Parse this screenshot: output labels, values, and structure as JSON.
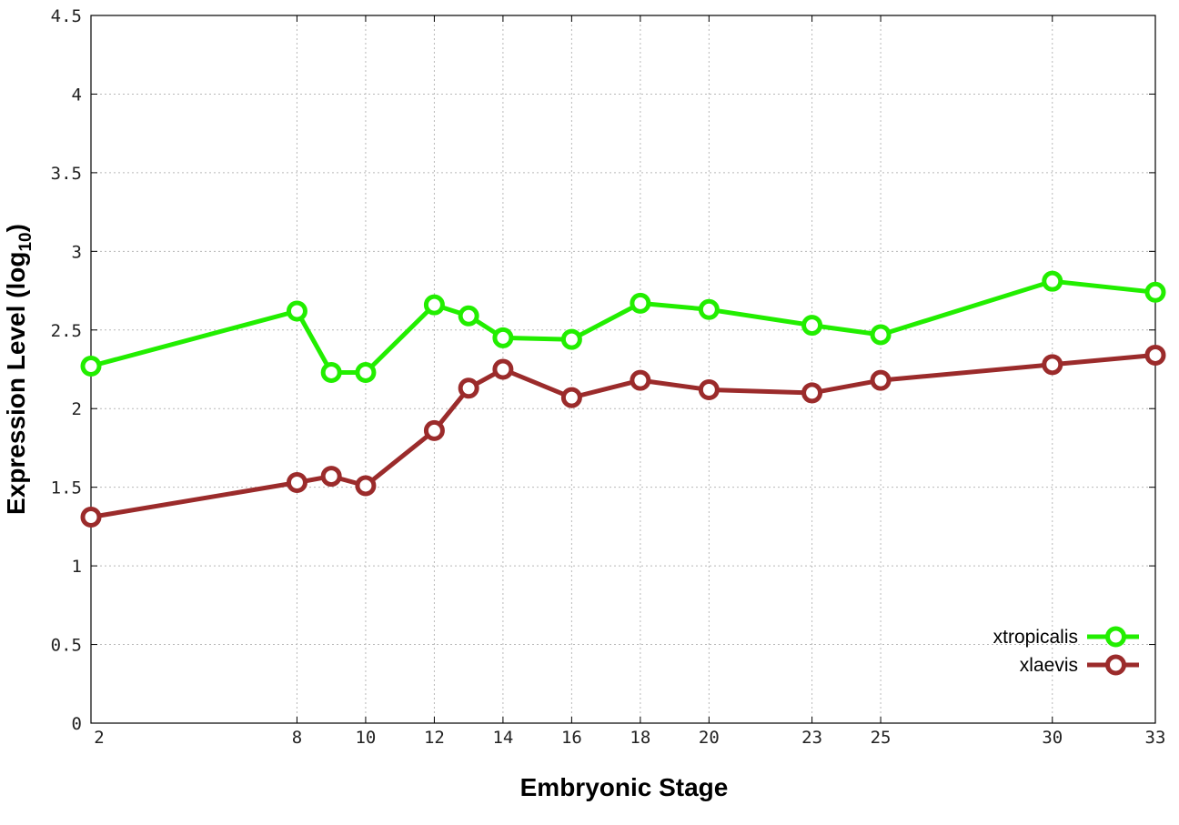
{
  "chart_data": {
    "type": "line",
    "xlabel": "Embryonic Stage",
    "ylabel": "Expression Level (log",
    "ylabel_sub": "10",
    "ylabel_suffix": ")",
    "xlim": [
      2,
      33
    ],
    "ylim": [
      0,
      4.5
    ],
    "x_ticks": [
      2,
      8,
      10,
      12,
      14,
      16,
      18,
      20,
      23,
      25,
      30,
      33
    ],
    "y_ticks": [
      "0",
      "0.5",
      "1",
      "1.5",
      "2",
      "2.5",
      "3",
      "3.5",
      "4",
      "4.5"
    ],
    "grid": true,
    "legend_position": "bottom-right",
    "series": [
      {
        "name": "xtropicalis",
        "color": "#22ee00",
        "x": [
          2,
          8,
          9,
          10,
          12,
          13,
          14,
          16,
          18,
          20,
          23,
          25,
          30,
          33
        ],
        "y": [
          2.27,
          2.62,
          2.23,
          2.23,
          2.66,
          2.59,
          2.45,
          2.44,
          2.67,
          2.63,
          2.53,
          2.47,
          2.81,
          2.74
        ]
      },
      {
        "name": "xlaevis",
        "color": "#9b2b2b",
        "x": [
          2,
          8,
          9,
          10,
          12,
          13,
          14,
          16,
          18,
          20,
          23,
          25,
          30,
          33
        ],
        "y": [
          1.31,
          1.53,
          1.57,
          1.51,
          1.86,
          2.13,
          2.25,
          2.07,
          2.18,
          2.12,
          2.1,
          2.18,
          2.28,
          2.34
        ]
      }
    ]
  }
}
